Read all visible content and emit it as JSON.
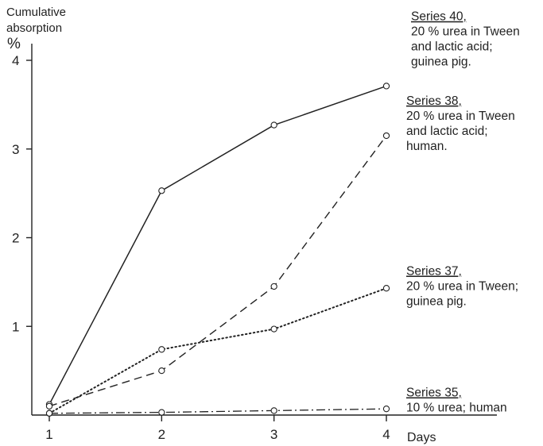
{
  "chart_data": {
    "type": "line",
    "ylabel_lines": [
      "Cumulative",
      "absorption",
      "%"
    ],
    "xlabel": "Days",
    "x": [
      1,
      2,
      3,
      4
    ],
    "xlim": [
      0.85,
      4.85
    ],
    "ylim": [
      0,
      4.4
    ],
    "xticks": [
      1,
      2,
      3,
      4
    ],
    "yticks": [
      1,
      2,
      3,
      4
    ],
    "grid": false,
    "legend_placement": "right, beside each line end",
    "series": [
      {
        "name": "Series 40,",
        "description": [
          "20 % urea in Tween",
          "and lactic acid;",
          "guinea pig."
        ],
        "values": [
          0.12,
          2.53,
          3.27,
          3.71
        ],
        "line_style": "solid",
        "label_anchor_y": 4.45
      },
      {
        "name": "Series 38,",
        "description": [
          "20 % urea in Tween",
          "and lactic acid;",
          "human."
        ],
        "values": [
          0.1,
          0.5,
          1.45,
          3.15
        ],
        "line_style": "dashed",
        "label_anchor_y": 3.5
      },
      {
        "name": "Series 37,",
        "description": [
          "20 % urea in Tween;",
          "guinea pig."
        ],
        "values": [
          0.02,
          0.74,
          0.97,
          1.43
        ],
        "line_style": "dotted",
        "label_anchor_y": 1.58
      },
      {
        "name": "Series 35,",
        "description": [
          "10 % urea; human"
        ],
        "values": [
          0.02,
          0.03,
          0.05,
          0.07
        ],
        "line_style": "dash-dot",
        "label_anchor_y": 0.21
      }
    ]
  }
}
